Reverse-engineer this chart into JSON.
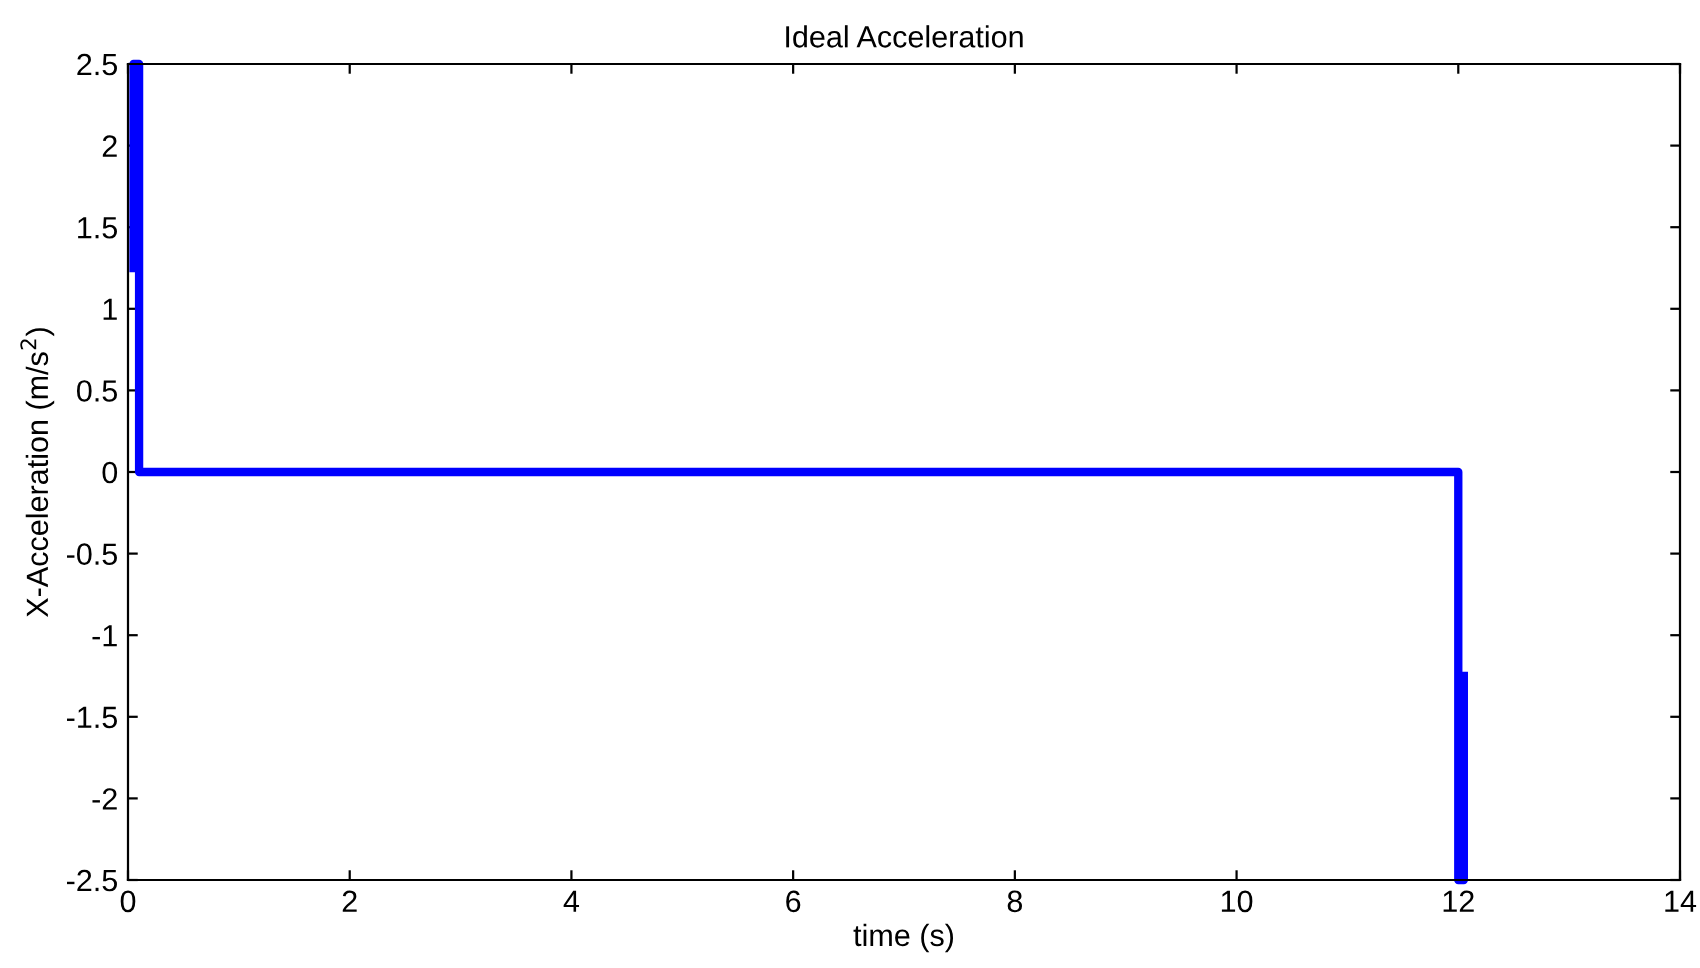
{
  "chart_data": {
    "type": "line",
    "title": "Ideal Acceleration",
    "xlabel": "time (s)",
    "ylabel": "X-Acceleration (m/s$^{2}$)",
    "series": [
      {
        "color": "#0000ff",
        "x": [
          0.05,
          0.05,
          0.1,
          0.1,
          12,
          12,
          12.05,
          12.05
        ],
        "values": [
          1.25,
          2.5,
          2.5,
          0,
          0,
          -2.5,
          -2.5,
          -1.25
        ]
      }
    ],
    "xlim": [
      0,
      14
    ],
    "xticks": [
      0,
      2,
      4,
      6,
      8,
      10,
      12,
      14
    ],
    "ylim": [
      -2.5,
      2.5
    ],
    "yticks": [
      -2.5,
      -2,
      -1.5,
      -1,
      -0.5,
      0,
      0.5,
      1,
      1.5,
      2,
      2.5
    ],
    "grid": false,
    "legend": false,
    "marker": "none",
    "line_style": "solid"
  }
}
